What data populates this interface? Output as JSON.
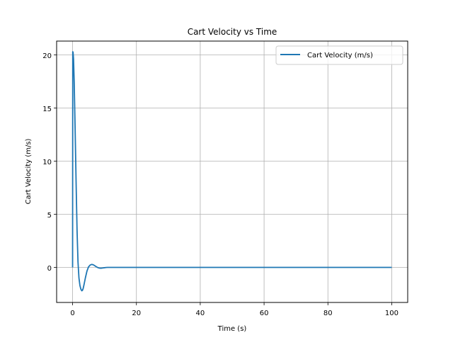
{
  "chart_data": {
    "type": "line",
    "title": "Cart Velocity vs Time",
    "xlabel": "Time (s)",
    "ylabel": "Cart Velocity (m/s)",
    "xlim": [
      -5,
      105
    ],
    "ylim": [
      -3.3,
      21.3
    ],
    "xticks": [
      0,
      20,
      40,
      60,
      80,
      100
    ],
    "yticks": [
      0,
      5,
      10,
      15,
      20
    ],
    "grid": true,
    "legend_position": "top-right",
    "series": [
      {
        "name": "Cart Velocity (m/s)",
        "color": "#1f77b4",
        "x": [
          0,
          0.05,
          0.15,
          0.3,
          0.5,
          0.8,
          1.1,
          1.4,
          1.7,
          2.0,
          2.3,
          2.6,
          2.9,
          3.1,
          3.3,
          3.6,
          4.0,
          4.5,
          5.0,
          5.5,
          6.0,
          6.5,
          7.0,
          7.5,
          8.0,
          8.5,
          9.0,
          9.5,
          10.0,
          10.5,
          11.0,
          12.0,
          14.0,
          20.0,
          40.0,
          60.0,
          80.0,
          100.0
        ],
        "y": [
          0,
          20.3,
          20.25,
          19.6,
          17.5,
          13.0,
          8.0,
          3.5,
          0.5,
          -1.0,
          -1.7,
          -2.05,
          -2.2,
          -2.15,
          -2.0,
          -1.6,
          -1.0,
          -0.35,
          0.05,
          0.22,
          0.28,
          0.24,
          0.15,
          0.05,
          -0.03,
          -0.07,
          -0.07,
          -0.05,
          -0.03,
          -0.01,
          0.0,
          0.0,
          0.0,
          0.0,
          0.0,
          0.0,
          0.0,
          0.0
        ]
      }
    ]
  }
}
